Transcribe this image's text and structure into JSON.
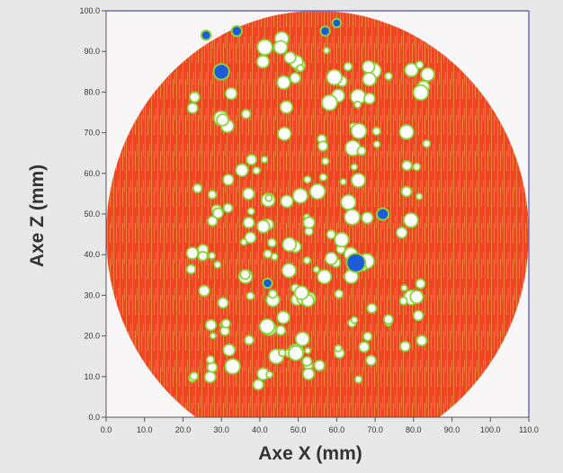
{
  "chart_data": {
    "type": "heatmap",
    "xlabel": "Axe X (mm)",
    "ylabel": "Axe Z (mm)",
    "xlim": [
      0,
      110
    ],
    "ylim": [
      0,
      100
    ],
    "x_ticks": [
      "0.0",
      "10.0",
      "20.0",
      "30.0",
      "40.0",
      "50.0",
      "60.0",
      "70.0",
      "80.0",
      "90.0",
      "100.0",
      "110.0"
    ],
    "y_ticks": [
      "0.0",
      "10.0",
      "20.0",
      "30.0",
      "40.0",
      "50.0",
      "60.0",
      "70.0",
      "80.0",
      "90.0",
      "100.0"
    ],
    "grid": false,
    "disc": {
      "center_x": 55,
      "center_z": 45,
      "radius_x": 55,
      "radius_z": 55
    },
    "colors": {
      "outside": "#f9f6f7",
      "disc_fill": "#f04522",
      "disc_texture": "#e8b04a",
      "pore_rim": "#8ed23a",
      "pore_fill": "#ffffff",
      "inclusion": "#1e5bd8",
      "frame": "#6a6ad0"
    },
    "inclusions": [
      {
        "x": 30,
        "z": 85,
        "r": 1.8
      },
      {
        "x": 65,
        "z": 38,
        "r": 2.2
      },
      {
        "x": 72,
        "z": 50,
        "r": 1.3
      },
      {
        "x": 34,
        "z": 95,
        "r": 1.1
      },
      {
        "x": 26,
        "z": 94,
        "r": 1.0
      },
      {
        "x": 42,
        "z": 33,
        "r": 1.0
      },
      {
        "x": 57,
        "z": 95,
        "r": 1.0
      },
      {
        "x": 60,
        "z": 97,
        "r": 0.9
      }
    ]
  }
}
